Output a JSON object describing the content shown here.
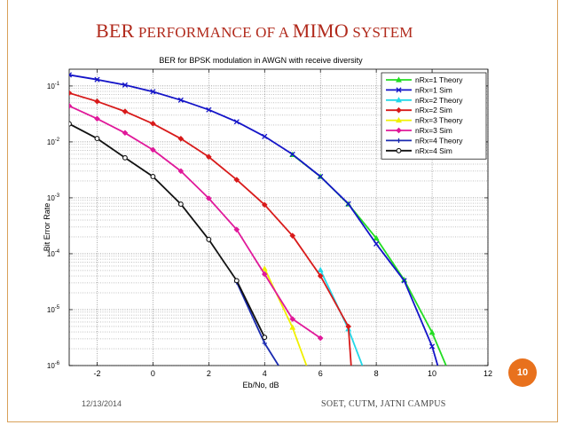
{
  "slide": {
    "title_big1": "BER",
    "title_small1": " PERFORMANCE OF A ",
    "title_big2": "MIMO",
    "title_small2": " SYSTEM",
    "page_number": "10",
    "date": "12/13/2014",
    "footer": "SOET, CUTM, JATNI CAMPUS"
  },
  "chart_data": {
    "type": "line",
    "title": "BER for BPSK modulation in AWGN with receive diversity",
    "xlabel": "Eb/No, dB",
    "ylabel": "Bit Error Rate",
    "xlim": [
      -3,
      12
    ],
    "ylim_log10": [
      -6,
      -0.7
    ],
    "x_ticks": [
      -2,
      0,
      2,
      4,
      6,
      8,
      10,
      12
    ],
    "x_tick_labels": [
      "-2",
      "0",
      "2",
      "4",
      "6",
      "8",
      "10",
      "12"
    ],
    "y_tick_exponents": [
      -6,
      -5,
      -4,
      -3,
      -2,
      -1
    ],
    "y_tick_labels": [
      {
        "base": "10",
        "exp": "-6"
      },
      {
        "base": "10",
        "exp": "-5"
      },
      {
        "base": "10",
        "exp": "-4"
      },
      {
        "base": "10",
        "exp": "-3"
      },
      {
        "base": "10",
        "exp": "-2"
      },
      {
        "base": "10",
        "exp": "-1"
      }
    ],
    "grid": true,
    "legend_position": "top-right",
    "series": [
      {
        "name": "nRx=1 Theory",
        "color": "#22dd22",
        "marker": "triangle",
        "x": [
          5,
          6,
          7,
          8,
          9,
          10,
          10.5
        ],
        "y": [
          0.0059,
          0.0024,
          0.00077,
          0.00019,
          3.4e-05,
          3.9e-06,
          1e-06
        ]
      },
      {
        "name": "nRx=1 Sim",
        "color": "#1414c8",
        "marker": "x",
        "x": [
          -3,
          -2,
          -1,
          0,
          1,
          2,
          3,
          4,
          5,
          6,
          7,
          8,
          9,
          10,
          10.2
        ],
        "y": [
          0.158,
          0.13,
          0.104,
          0.079,
          0.056,
          0.0375,
          0.0229,
          0.0125,
          0.006,
          0.0024,
          0.00078,
          0.00015,
          3.3e-05,
          2.2e-06,
          1e-06
        ]
      },
      {
        "name": "nRx=2 Theory",
        "color": "#22d8e8",
        "marker": "triangle",
        "x": [
          6,
          7,
          7.5
        ],
        "y": [
          5.1e-05,
          4.5e-06,
          1e-06
        ]
      },
      {
        "name": "nRx=2 Sim",
        "color": "#d81a1a",
        "marker": "diamond",
        "x": [
          -3,
          -2,
          -1,
          0,
          1,
          2,
          3,
          4,
          5,
          6,
          7,
          7.1
        ],
        "y": [
          0.075,
          0.053,
          0.035,
          0.0212,
          0.0114,
          0.0054,
          0.0021,
          0.00075,
          0.00021,
          4e-05,
          5e-06,
          1e-06
        ]
      },
      {
        "name": "nRx=3 Theory",
        "color": "#f0f000",
        "marker": "triangle",
        "x": [
          4,
          5,
          5.5
        ],
        "y": [
          5.4e-05,
          4.8e-06,
          1e-06
        ]
      },
      {
        "name": "nRx=3 Sim",
        "color": "#e0199a",
        "marker": "diamond",
        "x": [
          -3,
          -2,
          -1,
          0,
          1,
          2,
          3,
          4,
          5,
          6
        ],
        "y": [
          0.044,
          0.026,
          0.0145,
          0.0072,
          0.003,
          0.00098,
          0.00027,
          4.3e-05,
          6.8e-06,
          3.1e-06
        ]
      },
      {
        "name": "nRx=4 Theory",
        "color": "#1a2ab0",
        "marker": "plus",
        "x": [
          3,
          4,
          4.5
        ],
        "y": [
          3.1e-05,
          2.5e-06,
          1e-06
        ]
      },
      {
        "name": "nRx=4 Sim",
        "color": "#111111",
        "marker": "circle",
        "x": [
          -3,
          -2,
          -1,
          0,
          1,
          2,
          3,
          4
        ],
        "y": [
          0.021,
          0.0115,
          0.0052,
          0.0024,
          0.00077,
          0.00018,
          3.3e-05,
          3.2e-06
        ]
      }
    ]
  }
}
